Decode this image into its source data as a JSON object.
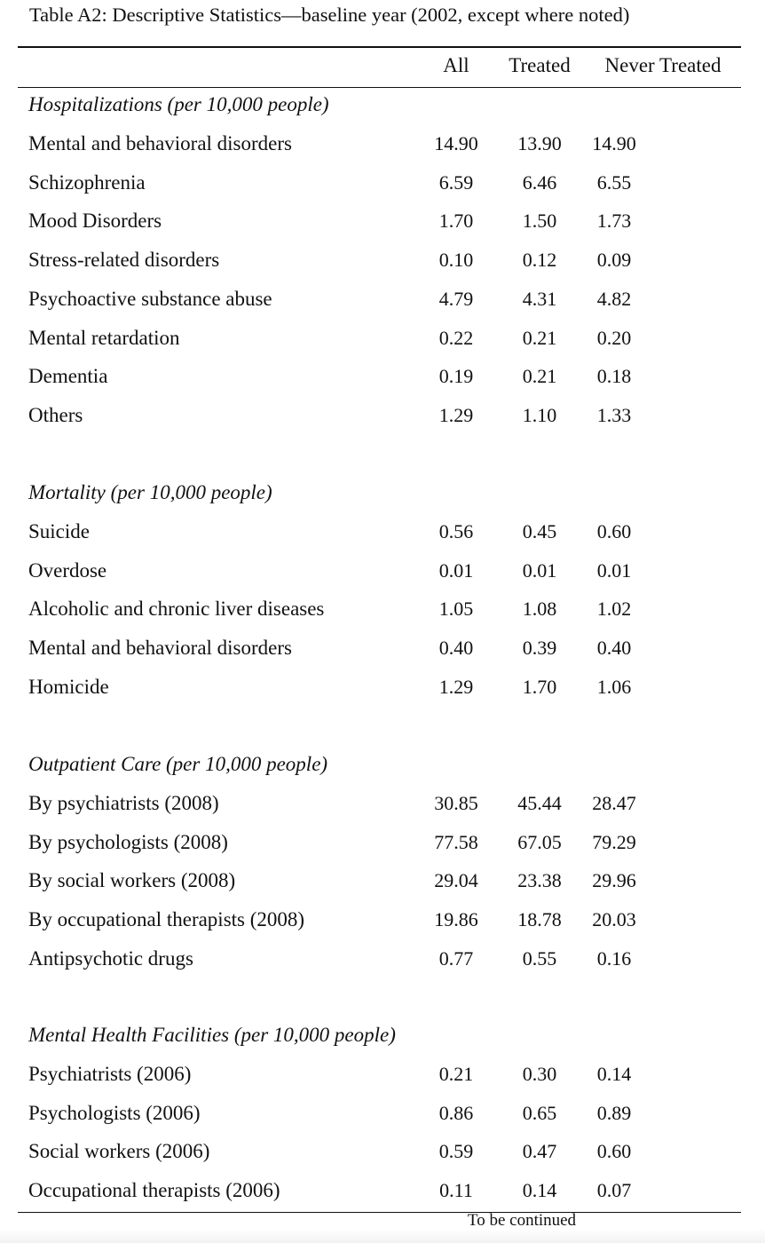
{
  "caption": "Table A2: Descriptive Statistics—baseline year (2002, except where noted)",
  "columns": [
    "All",
    "Treated",
    "Never Treated"
  ],
  "sections": [
    {
      "title": "Hospitalizations (per 10,000 people)",
      "rows": [
        {
          "label": "Mental and behavioral disorders",
          "values": [
            "14.90",
            "13.90",
            "14.90"
          ]
        },
        {
          "label": "Schizophrenia",
          "values": [
            "6.59",
            "6.46",
            "6.55"
          ]
        },
        {
          "label": "Mood Disorders",
          "values": [
            "1.70",
            "1.50",
            "1.73"
          ]
        },
        {
          "label": "Stress-related disorders",
          "values": [
            "0.10",
            "0.12",
            "0.09"
          ]
        },
        {
          "label": "Psychoactive substance abuse",
          "values": [
            "4.79",
            "4.31",
            "4.82"
          ]
        },
        {
          "label": "Mental retardation",
          "values": [
            "0.22",
            "0.21",
            "0.20"
          ]
        },
        {
          "label": "Dementia",
          "values": [
            "0.19",
            "0.21",
            "0.18"
          ]
        },
        {
          "label": "Others",
          "values": [
            "1.29",
            "1.10",
            "1.33"
          ]
        }
      ]
    },
    {
      "title": "Mortality (per 10,000 people)",
      "rows": [
        {
          "label": "Suicide",
          "values": [
            "0.56",
            "0.45",
            "0.60"
          ]
        },
        {
          "label": "Overdose",
          "values": [
            "0.01",
            "0.01",
            "0.01"
          ]
        },
        {
          "label": "Alcoholic and chronic liver diseases",
          "values": [
            "1.05",
            "1.08",
            "1.02"
          ]
        },
        {
          "label": "Mental and behavioral disorders",
          "values": [
            "0.40",
            "0.39",
            "0.40"
          ]
        },
        {
          "label": "Homicide",
          "values": [
            "1.29",
            "1.70",
            "1.06"
          ]
        }
      ]
    },
    {
      "title": "Outpatient Care (per 10,000 people)",
      "rows": [
        {
          "label": "By psychiatrists (2008)",
          "values": [
            "30.85",
            "45.44",
            "28.47"
          ]
        },
        {
          "label": "By psychologists (2008)",
          "values": [
            "77.58",
            "67.05",
            "79.29"
          ]
        },
        {
          "label": "By social workers (2008)",
          "values": [
            "29.04",
            "23.38",
            "29.96"
          ]
        },
        {
          "label": "By occupational therapists (2008)",
          "values": [
            "19.86",
            "18.78",
            "20.03"
          ]
        },
        {
          "label": "Antipsychotic drugs",
          "values": [
            "0.77",
            "0.55",
            "0.16"
          ]
        }
      ]
    },
    {
      "title": "Mental Health Facilities (per 10,000 people)",
      "rows": [
        {
          "label": "Psychiatrists (2006)",
          "values": [
            "0.21",
            "0.30",
            "0.14"
          ]
        },
        {
          "label": "Psychologists (2006)",
          "values": [
            "0.86",
            "0.65",
            "0.89"
          ]
        },
        {
          "label": "Social workers (2006)",
          "values": [
            "0.59",
            "0.47",
            "0.60"
          ]
        },
        {
          "label": "Occupational therapists (2006)",
          "values": [
            "0.11",
            "0.14",
            "0.07"
          ]
        }
      ]
    }
  ],
  "footer": "To be continued"
}
